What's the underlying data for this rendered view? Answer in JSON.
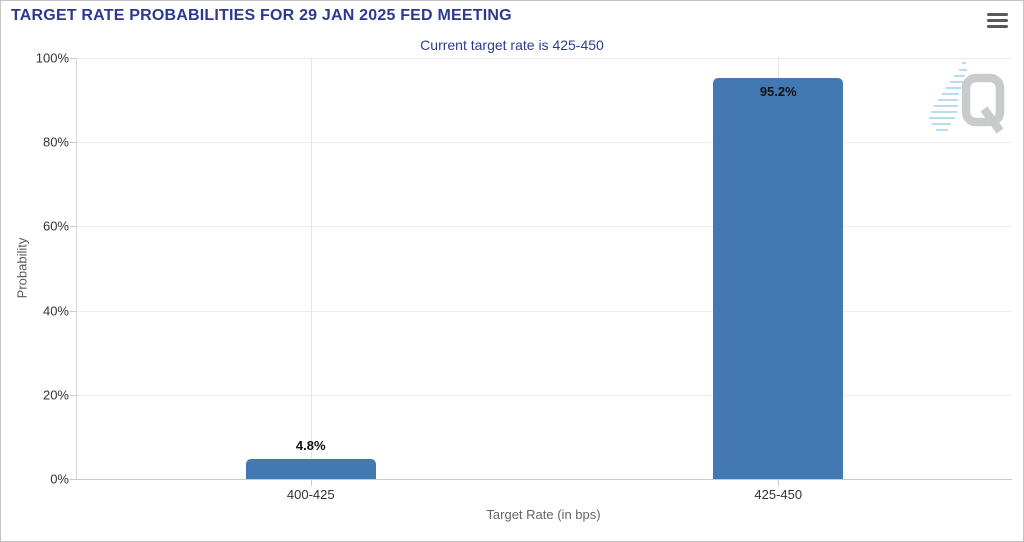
{
  "page": {
    "title": "TARGET RATE PROBABILITIES FOR 29 JAN 2025 FED MEETING"
  },
  "menu": {
    "icon_name": "hamburger-menu-icon"
  },
  "watermark": {
    "letter": "Q"
  },
  "colors": {
    "title_navy": "#2b3a8f",
    "subtitle_navy": "#2e3c8e",
    "bar_blue": "#4379b2",
    "axis_text": "#333333",
    "axis_title_gray": "#666666",
    "watermark_gray": "#c8cacc",
    "watermark_blue": "#b9dcee"
  },
  "chart_data": {
    "type": "bar",
    "title": "TARGET RATE PROBABILITIES FOR 29 JAN 2025 FED MEETING",
    "subtitle": "Current target rate is 425-450",
    "categories": [
      "400-425",
      "425-450"
    ],
    "values": [
      4.8,
      95.2
    ],
    "value_labels": [
      "4.8%",
      "95.2%"
    ],
    "xlabel": "Target Rate (in bps)",
    "ylabel": "Probability",
    "ylim": [
      0,
      100
    ],
    "yticks": [
      0,
      20,
      40,
      60,
      80,
      100
    ],
    "ytick_suffix": "%",
    "grid": true,
    "legend": false,
    "bar_color": "#4379b2"
  }
}
